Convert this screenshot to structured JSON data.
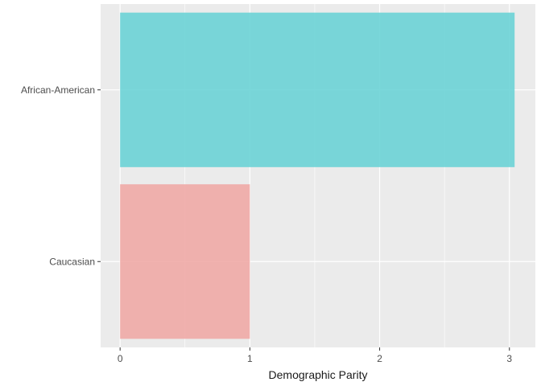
{
  "chart_data": {
    "type": "bar",
    "orientation": "horizontal",
    "categories": [
      "African-American",
      "Caucasian"
    ],
    "values": [
      3.04,
      1.0
    ],
    "colors": [
      "#6cd3d6",
      "#f0aaa6"
    ],
    "xlabel": "Demographic Parity",
    "ylabel": "",
    "xlim": [
      -0.15,
      3.2
    ],
    "x_ticks": [
      0,
      1,
      2,
      3
    ],
    "x_minor_ticks": [
      0.5,
      1.5,
      2.5
    ],
    "grid": true,
    "legend": "none",
    "panel_background": "#ebebeb",
    "grid_color": "#ffffff"
  }
}
